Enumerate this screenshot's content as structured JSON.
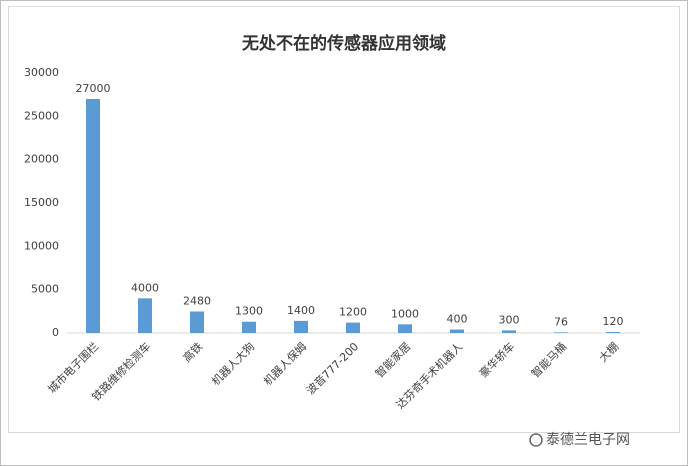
{
  "chart_data": {
    "type": "bar",
    "title": "无处不在的传感器应用领域",
    "categories": [
      "城市电子围栏",
      "铁路维修检测车",
      "高铁",
      "机器人大狗",
      "机器人保姆",
      "波音777-200",
      "智能家居",
      "达芬奇手术机器人",
      "豪华轿车",
      "智能马桶",
      "大棚"
    ],
    "values": [
      27000,
      4000,
      2480,
      1300,
      1400,
      1200,
      1000,
      400,
      300,
      76,
      120
    ],
    "color": "#5b9bd5",
    "ylim": [
      0,
      30000
    ],
    "yticks": [
      0,
      5000,
      10000,
      15000,
      20000,
      25000,
      30000
    ],
    "grid": false
  },
  "watermark": "泰德兰电子网"
}
